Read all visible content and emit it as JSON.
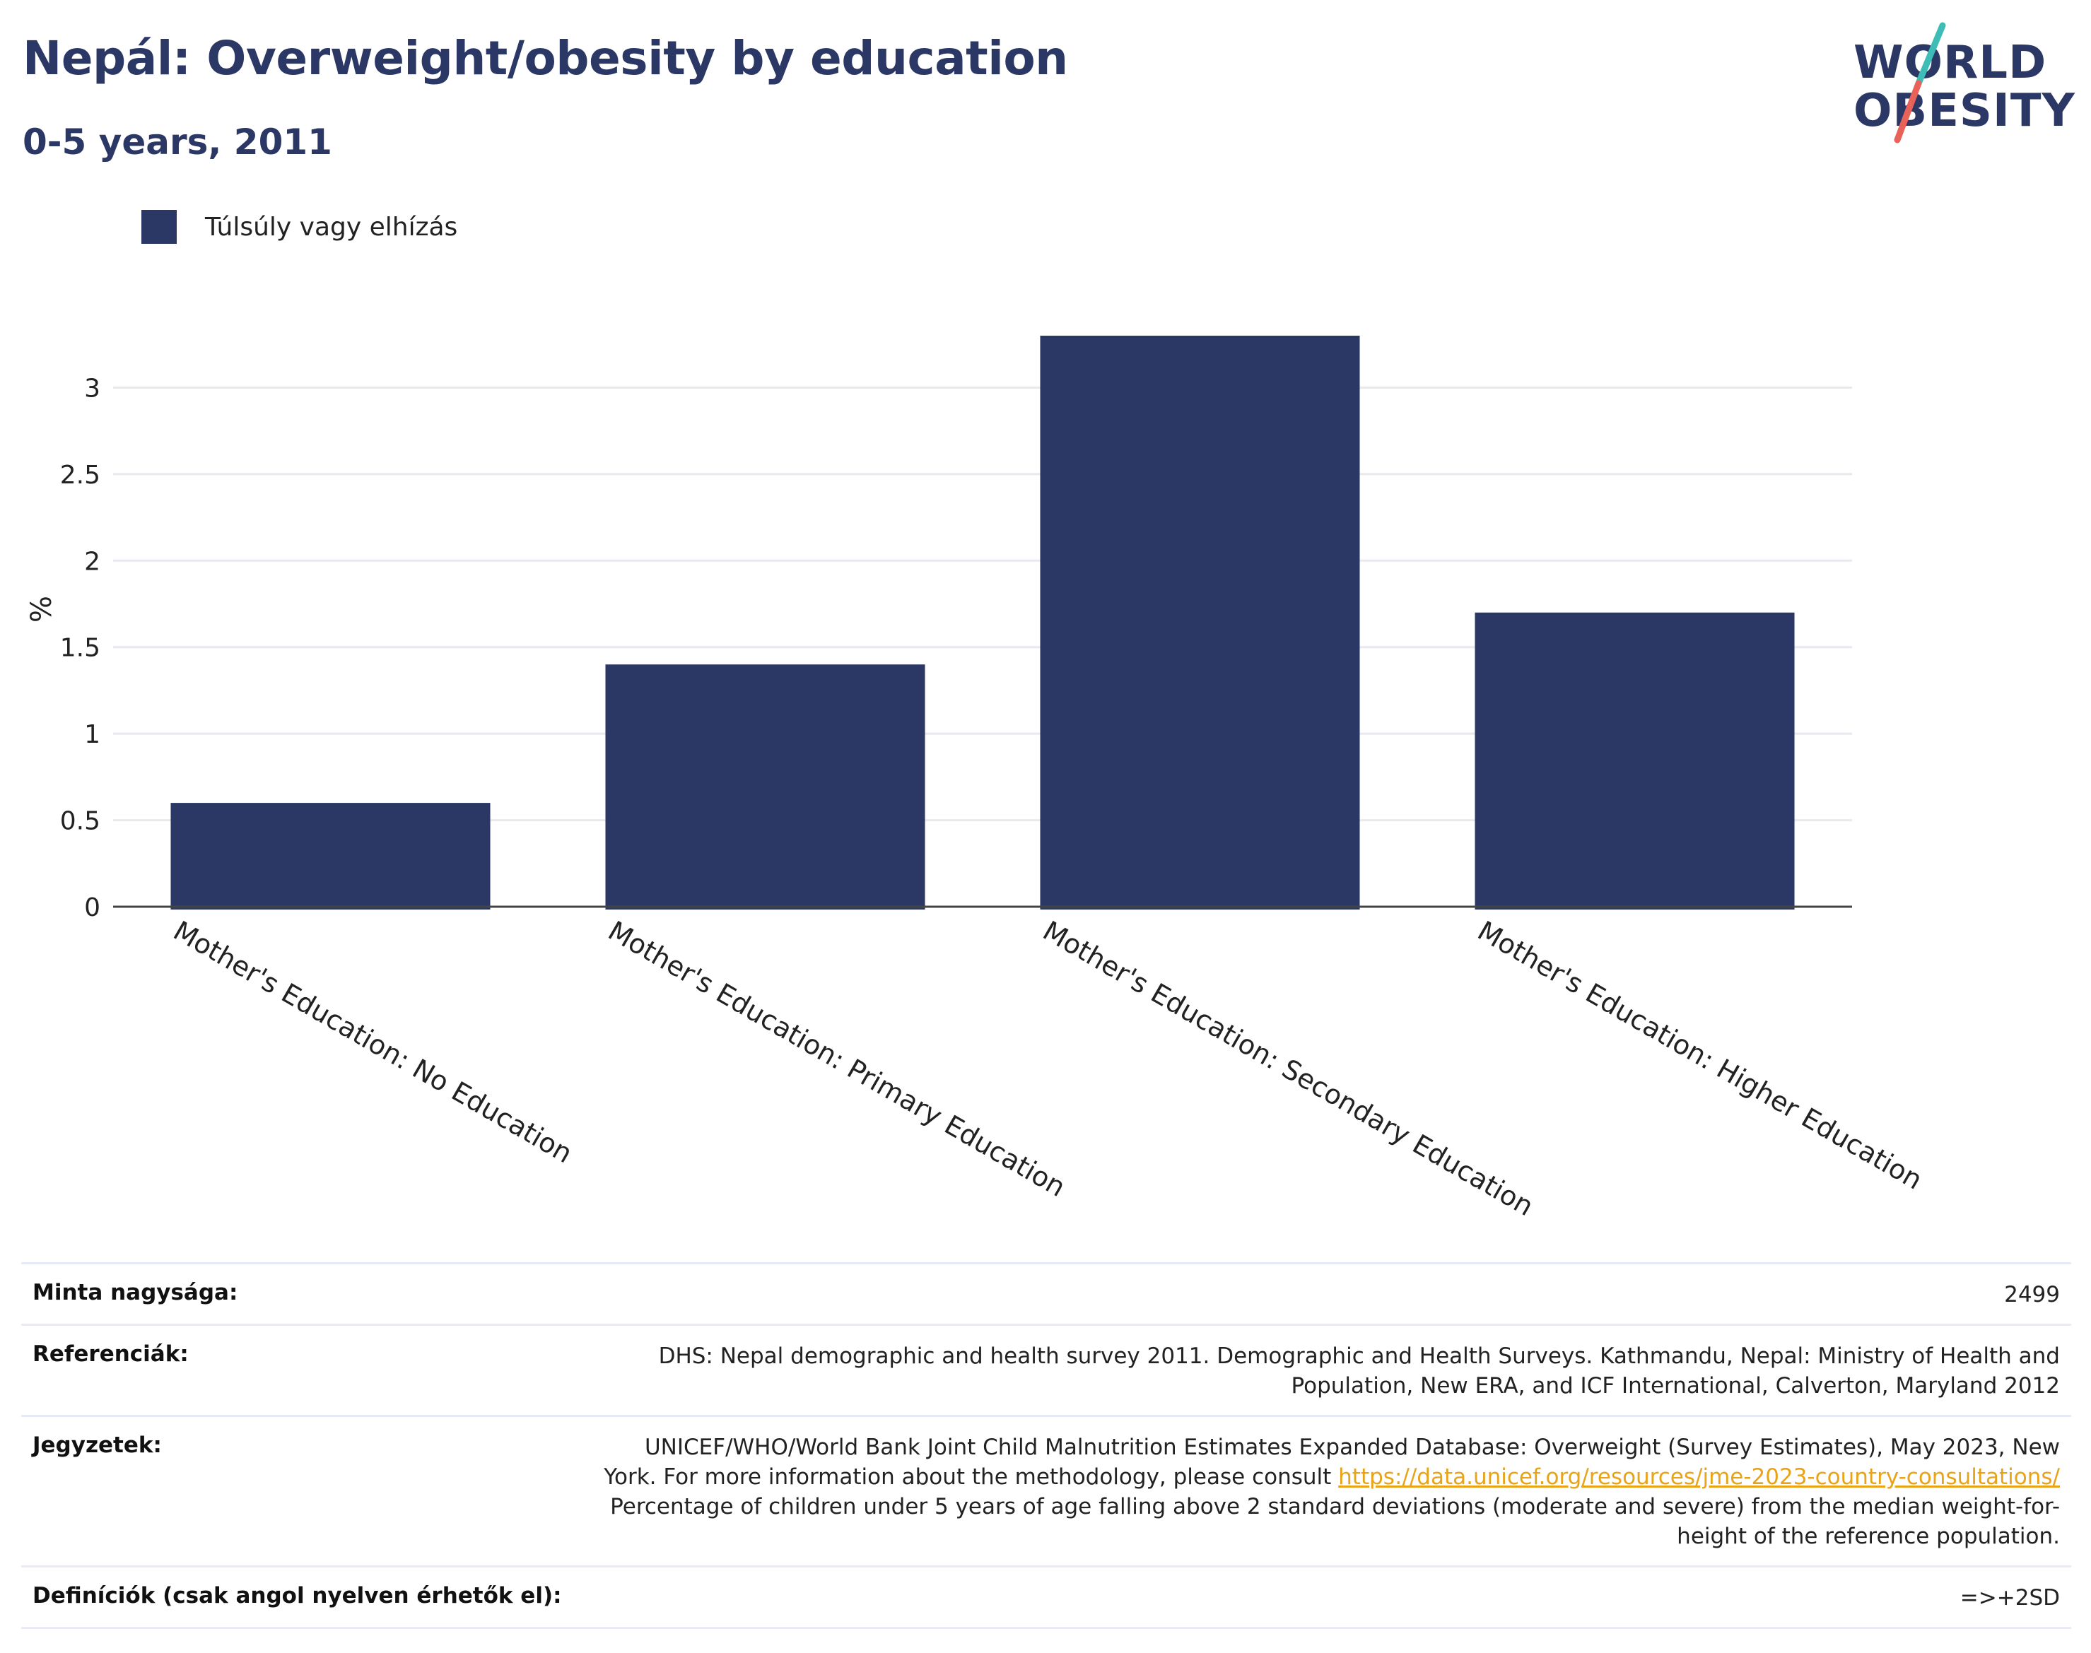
{
  "header": {
    "title": "Nepál: Overweight/obesity by education",
    "subtitle": "0-5 years, 2011"
  },
  "logo": {
    "line1": "WORLD",
    "line2": "OBESITY",
    "slash_colors": [
      "#3dbdb5",
      "#e8625a"
    ]
  },
  "legend": {
    "label": "Túlsúly vagy elhízás",
    "color": "#2b3764"
  },
  "chart_data": {
    "type": "bar",
    "categories": [
      "Mother's Education: No Education",
      "Mother's Education: Primary Education",
      "Mother's Education: Secondary Education",
      "Mother's Education: Higher Education"
    ],
    "series": [
      {
        "name": "Túlsúly vagy elhízás",
        "values": [
          0.6,
          1.4,
          3.3,
          1.7
        ],
        "color": "#2b3764"
      }
    ],
    "ylabel": "%",
    "ylim": [
      0,
      3.3
    ],
    "yticks": [
      0,
      0.5,
      1,
      1.5,
      2,
      2.5,
      3
    ],
    "ytick_labels": [
      "0",
      "0.5",
      "1",
      "1.5",
      "2",
      "2.5",
      "3"
    ],
    "grid": true,
    "legend_position": "top-left"
  },
  "info": {
    "sample_size_label": "Minta nagysága:",
    "sample_size_value": "2499",
    "references_label": "Referenciák:",
    "references_value": "DHS: Nepal demographic and health survey 2011. Demographic and Health Surveys. Kathmandu, Nepal: Ministry of Health and Population, New ERA, and ICF International, Calverton, Maryland 2012",
    "notes_label": "Jegyzetek:",
    "notes_text_1": "UNICEF/WHO/World Bank Joint Child Malnutrition Estimates Expanded Database: Overweight (Survey Estimates), May 2023, New York. For more information about the methodology, please consult",
    "notes_link": "https://data.unicef.org/resources/jme-2023-country-consultations/",
    "notes_text_2": "Percentage of children under 5 years of age falling above 2 standard deviations (moderate and severe) from the median weight-for-height of the reference population.",
    "definitions_label": "Definíciók (csak angol nyelven érhetők el):",
    "definitions_value": "=>+2SD"
  }
}
